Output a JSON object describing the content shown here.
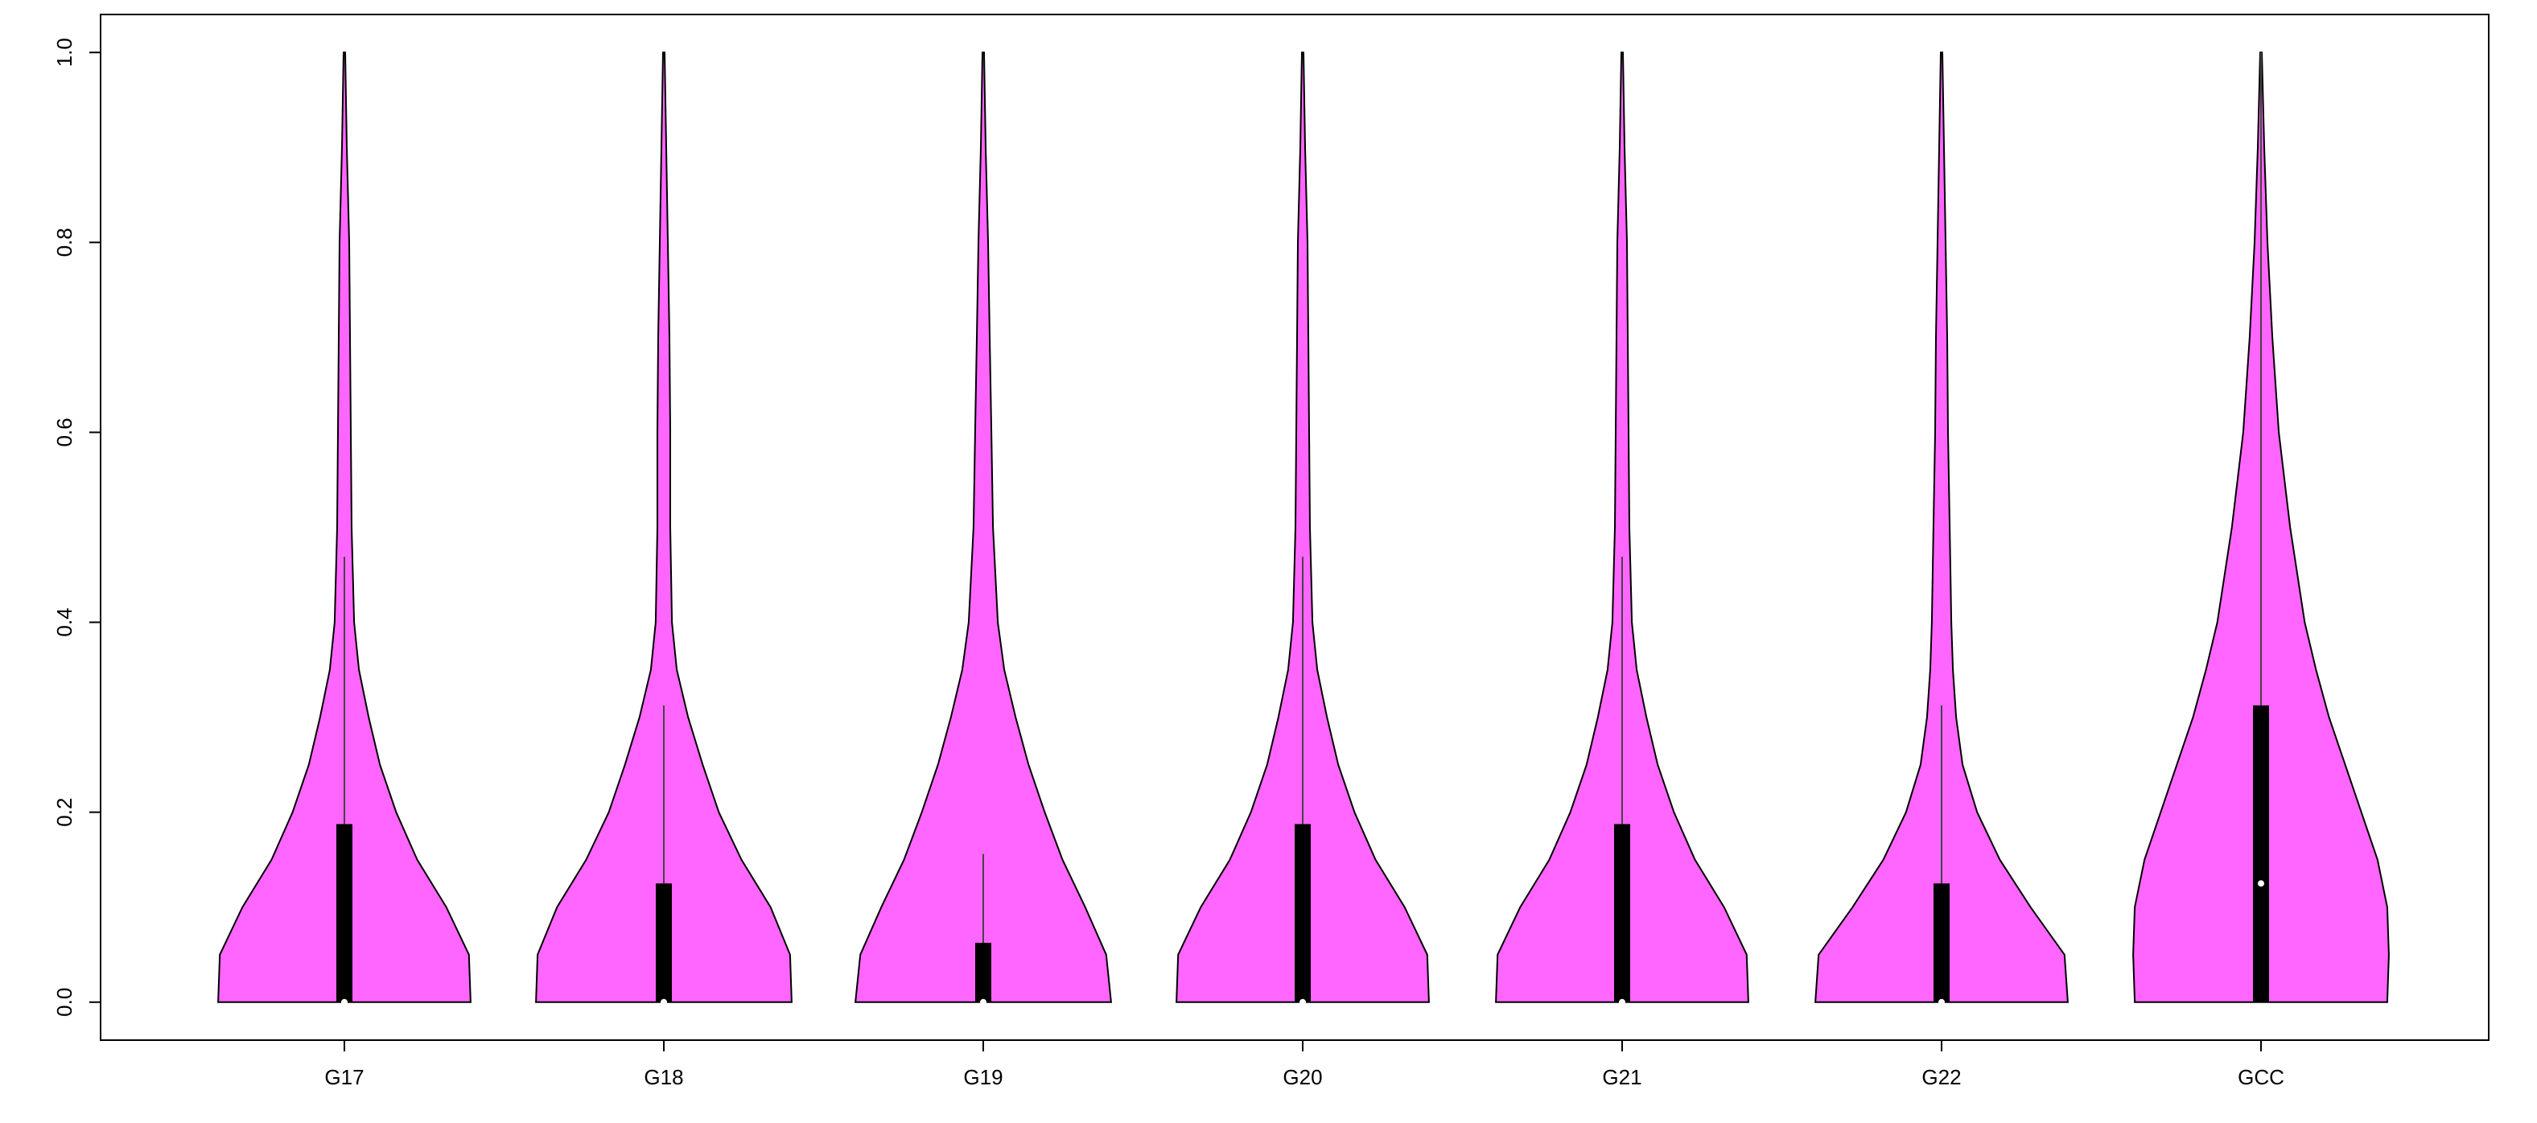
{
  "chart_data": {
    "type": "violin",
    "color": "#ff66ff",
    "ylim": [
      -0.04,
      1.04
    ],
    "yticks": [
      {
        "value": 0,
        "label": "0.0"
      },
      0.2,
      0.4,
      0.6,
      0.8,
      {
        "value": 1,
        "label": "1.0"
      }
    ],
    "density_y": [
      0,
      0.05,
      0.1,
      0.15,
      0.2,
      0.25,
      0.3,
      0.35,
      0.4,
      0.5,
      0.6,
      0.7,
      0.8,
      0.9,
      1
    ],
    "series": [
      {
        "name": "G17",
        "q1": 0,
        "median": 0,
        "q3": 0.1875,
        "whisker_high": 0.469,
        "widths": [
          78,
          77,
          63,
          45,
          32,
          22,
          15,
          9,
          6,
          4.5,
          4,
          3.5,
          3,
          1.5,
          0.5
        ]
      },
      {
        "name": "G18",
        "q1": 0,
        "median": 0,
        "q3": 0.125,
        "whisker_high": 0.3125,
        "widths": [
          79,
          78,
          66,
          48,
          34,
          24,
          15,
          8,
          5,
          4,
          4,
          3.5,
          2.5,
          1.5,
          0.5
        ]
      },
      {
        "name": "G19",
        "q1": 0,
        "median": 0,
        "q3": 0.0625,
        "whisker_high": 0.156,
        "widths": [
          79,
          76,
          63,
          49,
          38,
          28,
          20,
          13,
          9,
          6,
          5,
          4,
          3,
          1.5,
          0.5
        ]
      },
      {
        "name": "G20",
        "q1": 0,
        "median": 0,
        "q3": 0.1875,
        "whisker_high": 0.469,
        "widths": [
          78,
          77,
          63,
          45,
          32,
          22,
          15,
          9,
          6,
          4.5,
          4,
          3.5,
          3,
          1.5,
          0.5
        ]
      },
      {
        "name": "G21",
        "q1": 0,
        "median": 0,
        "q3": 0.1875,
        "whisker_high": 0.469,
        "widths": [
          78,
          77,
          63,
          45,
          32,
          22,
          15,
          9,
          6,
          4.5,
          4,
          3.5,
          3,
          1.5,
          0.5
        ]
      },
      {
        "name": "G22",
        "q1": 0,
        "median": 0,
        "q3": 0.125,
        "whisker_high": 0.3125,
        "widths": [
          78,
          76,
          55,
          36,
          22,
          13,
          9,
          7,
          6,
          5,
          4,
          3.5,
          2.5,
          1.5,
          0.5
        ]
      },
      {
        "name": "GCC",
        "q1": 0,
        "median": 0.125,
        "q3": 0.3125,
        "whisker_high": 1,
        "widths": [
          78,
          79,
          78,
          72,
          62,
          52,
          42,
          34,
          27,
          18,
          11,
          7,
          4,
          2,
          0.5
        ]
      }
    ]
  }
}
